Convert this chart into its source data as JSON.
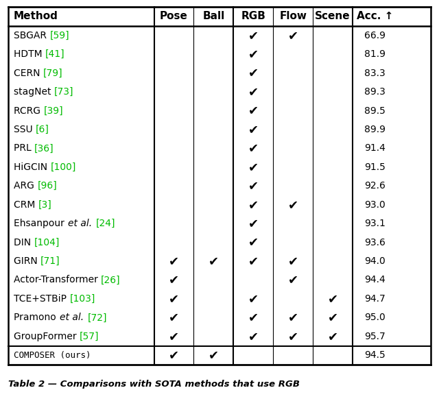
{
  "headers": [
    "Method",
    "Pose",
    "Ball",
    "RGB",
    "Flow",
    "Scene",
    "Acc. ↑"
  ],
  "rows": [
    {
      "method_plain": "SBGAR",
      "method_italic": "",
      "ref": "59",
      "pose": false,
      "ball": false,
      "rgb": true,
      "flow": true,
      "scene": false,
      "acc": "66.9",
      "is_ours": false
    },
    {
      "method_plain": "HDTM",
      "method_italic": "",
      "ref": "41",
      "pose": false,
      "ball": false,
      "rgb": true,
      "flow": false,
      "scene": false,
      "acc": "81.9",
      "is_ours": false
    },
    {
      "method_plain": "CERN",
      "method_italic": "",
      "ref": "79",
      "pose": false,
      "ball": false,
      "rgb": true,
      "flow": false,
      "scene": false,
      "acc": "83.3",
      "is_ours": false
    },
    {
      "method_plain": "stagNet",
      "method_italic": "",
      "ref": "73",
      "pose": false,
      "ball": false,
      "rgb": true,
      "flow": false,
      "scene": false,
      "acc": "89.3",
      "is_ours": false
    },
    {
      "method_plain": "RCRG",
      "method_italic": "",
      "ref": "39",
      "pose": false,
      "ball": false,
      "rgb": true,
      "flow": false,
      "scene": false,
      "acc": "89.5",
      "is_ours": false
    },
    {
      "method_plain": "SSU",
      "method_italic": "",
      "ref": "6",
      "pose": false,
      "ball": false,
      "rgb": true,
      "flow": false,
      "scene": false,
      "acc": "89.9",
      "is_ours": false
    },
    {
      "method_plain": "PRL",
      "method_italic": "",
      "ref": "36",
      "pose": false,
      "ball": false,
      "rgb": true,
      "flow": false,
      "scene": false,
      "acc": "91.4",
      "is_ours": false
    },
    {
      "method_plain": "HiGCIN",
      "method_italic": "",
      "ref": "100",
      "pose": false,
      "ball": false,
      "rgb": true,
      "flow": false,
      "scene": false,
      "acc": "91.5",
      "is_ours": false
    },
    {
      "method_plain": "ARG",
      "method_italic": "",
      "ref": "96",
      "pose": false,
      "ball": false,
      "rgb": true,
      "flow": false,
      "scene": false,
      "acc": "92.6",
      "is_ours": false
    },
    {
      "method_plain": "CRM",
      "method_italic": "",
      "ref": "3",
      "pose": false,
      "ball": false,
      "rgb": true,
      "flow": true,
      "scene": false,
      "acc": "93.0",
      "is_ours": false
    },
    {
      "method_plain": "Ehsanpour ",
      "method_italic": "et al.",
      "ref": "24",
      "pose": false,
      "ball": false,
      "rgb": true,
      "flow": false,
      "scene": false,
      "acc": "93.1",
      "is_ours": false
    },
    {
      "method_plain": "DIN",
      "method_italic": "",
      "ref": "104",
      "pose": false,
      "ball": false,
      "rgb": true,
      "flow": false,
      "scene": false,
      "acc": "93.6",
      "is_ours": false
    },
    {
      "method_plain": "GIRN",
      "method_italic": "",
      "ref": "71",
      "pose": true,
      "ball": true,
      "rgb": true,
      "flow": true,
      "scene": false,
      "acc": "94.0",
      "is_ours": false
    },
    {
      "method_plain": "Actor-Transformer",
      "method_italic": "",
      "ref": "26",
      "pose": true,
      "ball": false,
      "rgb": false,
      "flow": true,
      "scene": false,
      "acc": "94.4",
      "is_ours": false
    },
    {
      "method_plain": "TCE+STBiP",
      "method_italic": "",
      "ref": "103",
      "pose": true,
      "ball": false,
      "rgb": true,
      "flow": false,
      "scene": true,
      "acc": "94.7",
      "is_ours": false
    },
    {
      "method_plain": "Pramono ",
      "method_italic": "et al.",
      "ref": "72",
      "pose": true,
      "ball": false,
      "rgb": true,
      "flow": true,
      "scene": true,
      "acc": "95.0",
      "is_ours": false
    },
    {
      "method_plain": "GroupFormer",
      "method_italic": "",
      "ref": "57",
      "pose": true,
      "ball": false,
      "rgb": true,
      "flow": true,
      "scene": true,
      "acc": "95.7",
      "is_ours": false
    },
    {
      "method_plain": "COMPOSER (ours)",
      "method_italic": "",
      "ref": null,
      "pose": true,
      "ball": true,
      "rgb": false,
      "flow": false,
      "scene": false,
      "acc": "94.5",
      "is_ours": true
    }
  ],
  "ref_color": "#00bb00",
  "check_color": "#000000",
  "bg_color": "#ffffff",
  "caption": "Table 2 — Comparisons with SOTA methods that use RGB",
  "figwidth": 6.4,
  "figheight": 5.85,
  "dpi": 100
}
